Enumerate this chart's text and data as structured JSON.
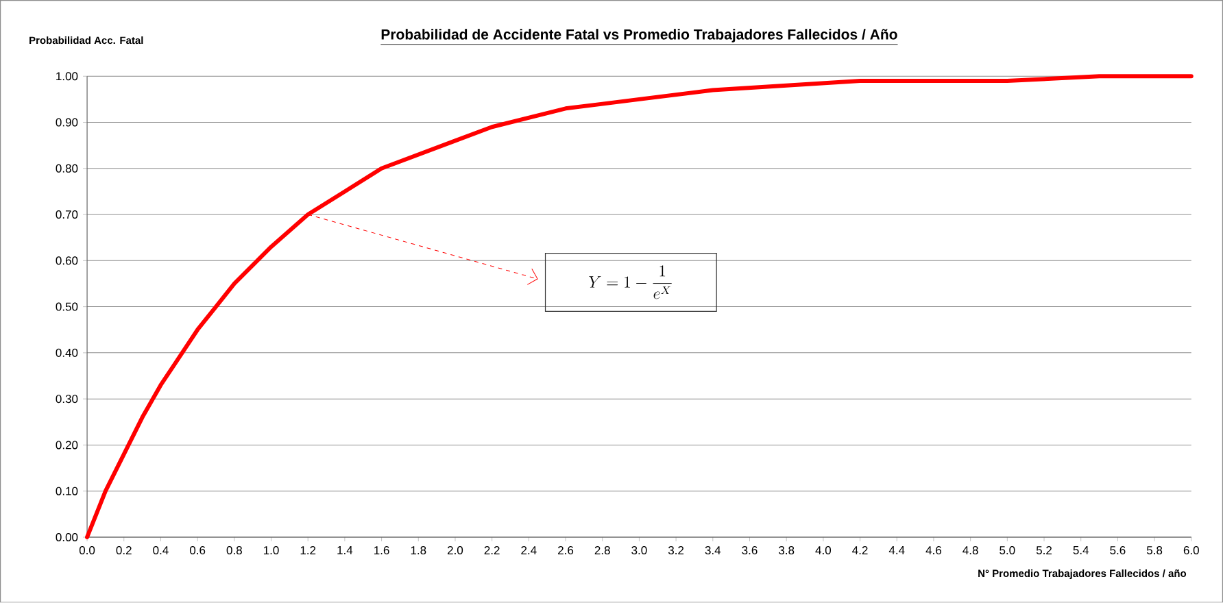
{
  "chart_data": {
    "type": "line",
    "title": "Probabilidad de Accidente Fatal vs Promedio Trabajadores Fallecidos / Año",
    "ylabel": "Probabilidad Acc. Fatal",
    "xlabel": "N° Promedio Trabajadores  Fallecidos / año",
    "x": [
      0,
      0.1,
      0.2,
      0.3,
      0.4,
      0.5,
      0.6,
      0.7,
      0.8,
      0.9,
      1.0,
      1.2,
      1.4,
      1.6,
      1.8,
      2.0,
      2.2,
      2.4,
      2.6,
      2.8,
      3.0,
      3.4,
      3.8,
      4.2,
      4.6,
      5.0,
      5.5,
      6.0
    ],
    "series": [
      {
        "color": "#ff0000",
        "values": [
          0,
          0.1,
          0.18,
          0.26,
          0.33,
          0.39,
          0.45,
          0.5,
          0.55,
          0.59,
          0.63,
          0.7,
          0.75,
          0.8,
          0.83,
          0.86,
          0.89,
          0.91,
          0.93,
          0.94,
          0.95,
          0.97,
          0.98,
          0.99,
          0.99,
          0.99,
          1.0,
          1.0
        ]
      }
    ],
    "xlim": [
      0,
      6
    ],
    "ylim": [
      0,
      1
    ],
    "xticks": [
      {
        "value": 0,
        "label": "0.0"
      },
      {
        "value": 0.2,
        "label": "0.2"
      },
      {
        "value": 0.4,
        "label": "0.4"
      },
      {
        "value": 0.6,
        "label": "0.6"
      },
      {
        "value": 0.8,
        "label": "0.8"
      },
      {
        "value": 1,
        "label": "1.0"
      },
      {
        "value": 1.2,
        "label": "1.2"
      },
      {
        "value": 1.4,
        "label": "1.4"
      },
      {
        "value": 1.6,
        "label": "1.6"
      },
      {
        "value": 1.8,
        "label": "1.8"
      },
      {
        "value": 2,
        "label": "2.0"
      },
      {
        "value": 2.2,
        "label": "2.2"
      },
      {
        "value": 2.4,
        "label": "2.4"
      },
      {
        "value": 2.6,
        "label": "2.6"
      },
      {
        "value": 2.8,
        "label": "2.8"
      },
      {
        "value": 3,
        "label": "3.0"
      },
      {
        "value": 3.2,
        "label": "3.2"
      },
      {
        "value": 3.4,
        "label": "3.4"
      },
      {
        "value": 3.6,
        "label": "3.6"
      },
      {
        "value": 3.8,
        "label": "3.8"
      },
      {
        "value": 4,
        "label": "4.0"
      },
      {
        "value": 4.2,
        "label": "4.2"
      },
      {
        "value": 4.4,
        "label": "4.4"
      },
      {
        "value": 4.6,
        "label": "4.6"
      },
      {
        "value": 4.8,
        "label": "4.8"
      },
      {
        "value": 5,
        "label": "5.0"
      },
      {
        "value": 5.2,
        "label": "5.2"
      },
      {
        "value": 5.4,
        "label": "5.4"
      },
      {
        "value": 5.6,
        "label": "5.6"
      },
      {
        "value": 5.8,
        "label": "5.8"
      },
      {
        "value": 6,
        "label": "6.0"
      }
    ],
    "yticks": [
      {
        "value": 0,
        "label": "0.00"
      },
      {
        "value": 0.1,
        "label": "0.10"
      },
      {
        "value": 0.2,
        "label": "0.20"
      },
      {
        "value": 0.3,
        "label": "0.30"
      },
      {
        "value": 0.4,
        "label": "0.40"
      },
      {
        "value": 0.5,
        "label": "0.50"
      },
      {
        "value": 0.6,
        "label": "0.60"
      },
      {
        "value": 0.7,
        "label": "0.70"
      },
      {
        "value": 0.8,
        "label": "0.80"
      },
      {
        "value": 0.9,
        "label": "0.90"
      },
      {
        "value": 1,
        "label": "1.00"
      }
    ],
    "grid": "y",
    "marker": "none",
    "line_style": "solid",
    "annotations": [
      "Y = 1 - \\frac{1}{e^{X}}"
    ]
  }
}
